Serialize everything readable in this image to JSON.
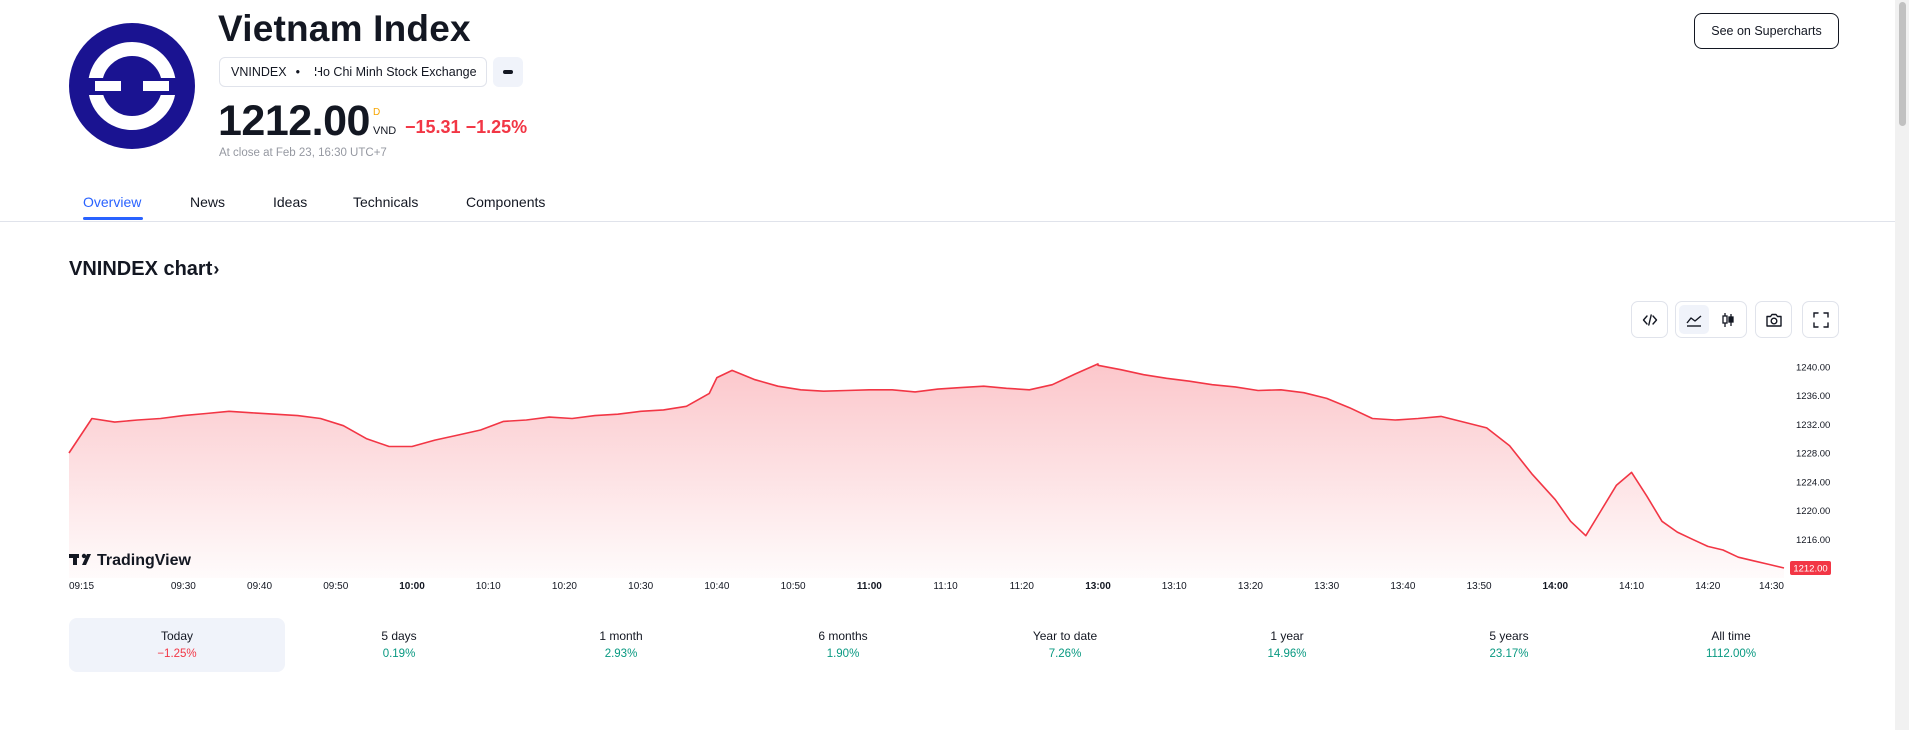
{
  "header": {
    "title": "Vietnam Index",
    "symbol": "VNINDEX",
    "exchange": "Ho Chi Minh Stock Exchange",
    "price": "1212.00",
    "price_flag": "D",
    "currency": "VND",
    "change": "−15.31",
    "change_percent": "−1.25%",
    "close_note": "At close at Feb 23, 16:30 UTC+7",
    "supercharts_button": "See on Supercharts",
    "logo_icon": "hose-logo-icon",
    "exchange_icon": "hose-exchange-icon"
  },
  "tabs": [
    {
      "label": "Overview",
      "active": true
    },
    {
      "label": "News"
    },
    {
      "label": "Ideas"
    },
    {
      "label": "Technicals"
    },
    {
      "label": "Components"
    }
  ],
  "chart_section": {
    "heading": "VNINDEX chart",
    "chevron": "›",
    "tools": [
      "embed-code-icon",
      "area-chart-icon",
      "candles-icon",
      "camera-icon",
      "fullscreen-icon"
    ],
    "watermark": "TradingView"
  },
  "colors": {
    "line": "#f23645",
    "negative": "#f23645",
    "positive": "#089981",
    "accent": "#2962ff"
  },
  "chart_data": {
    "type": "area",
    "x": [
      "09:15",
      "09:18",
      "09:21",
      "09:24",
      "09:27",
      "09:30",
      "09:33",
      "09:36",
      "09:39",
      "09:42",
      "09:45",
      "09:48",
      "09:51",
      "09:54",
      "09:57",
      "10:00",
      "10:03",
      "10:06",
      "10:09",
      "10:12",
      "10:15",
      "10:18",
      "10:21",
      "10:24",
      "10:27",
      "10:30",
      "10:33",
      "10:36",
      "10:39",
      "10:40",
      "10:42",
      "10:45",
      "10:48",
      "10:51",
      "10:54",
      "10:57",
      "11:00",
      "11:03",
      "11:06",
      "11:09",
      "11:12",
      "11:15",
      "11:18",
      "11:21",
      "11:24",
      "11:27",
      "11:30",
      "13:00",
      "13:03",
      "13:06",
      "13:09",
      "13:12",
      "13:15",
      "13:18",
      "13:21",
      "13:24",
      "13:27",
      "13:30",
      "13:33",
      "13:36",
      "13:39",
      "13:42",
      "13:45",
      "13:48",
      "13:51",
      "13:54",
      "13:57",
      "14:00",
      "14:02",
      "14:04",
      "14:06",
      "14:08",
      "14:10",
      "14:12",
      "14:14",
      "14:16",
      "14:18",
      "14:20",
      "14:22",
      "14:24",
      "14:26",
      "14:28",
      "14:30"
    ],
    "y": [
      1228.0,
      1232.8,
      1232.3,
      1232.6,
      1232.8,
      1233.2,
      1233.5,
      1233.8,
      1233.6,
      1233.4,
      1233.2,
      1232.8,
      1231.8,
      1230.0,
      1228.9,
      1228.9,
      1229.8,
      1230.5,
      1231.2,
      1232.4,
      1232.6,
      1233.0,
      1232.8,
      1233.2,
      1233.4,
      1233.8,
      1234.0,
      1234.5,
      1236.3,
      1238.5,
      1239.5,
      1238.2,
      1237.3,
      1236.8,
      1236.6,
      1236.7,
      1236.8,
      1236.8,
      1236.5,
      1236.9,
      1237.1,
      1237.3,
      1237.0,
      1236.8,
      1237.5,
      1239.0,
      1240.4,
      1240.2,
      1239.6,
      1238.9,
      1238.4,
      1238.0,
      1237.5,
      1237.2,
      1236.7,
      1236.8,
      1236.4,
      1235.6,
      1234.3,
      1232.8,
      1232.6,
      1232.8,
      1233.1,
      1232.3,
      1231.5,
      1229.0,
      1225.0,
      1221.5,
      1218.5,
      1216.5,
      1220.0,
      1223.5,
      1225.3,
      1222.0,
      1218.5,
      1217.0,
      1216.0,
      1215.0,
      1214.5,
      1213.5,
      1213.0,
      1212.5,
      1212.0
    ],
    "y_ticks": [
      "1216.00",
      "1220.00",
      "1224.00",
      "1228.00",
      "1232.00",
      "1236.00",
      "1240.00"
    ],
    "y_tick_values": [
      1216,
      1220,
      1224,
      1228,
      1232,
      1236,
      1240
    ],
    "x_tick_labels": [
      "09:15",
      "09:30",
      "09:40",
      "09:50",
      "10:00",
      "10:10",
      "10:20",
      "10:30",
      "10:40",
      "10:50",
      "11:00",
      "11:10",
      "11:20",
      "13:00",
      "13:10",
      "13:20",
      "13:30",
      "13:40",
      "13:50",
      "14:00",
      "14:10",
      "14:20",
      "14:30"
    ],
    "bold_x_ticks": [
      "10:00",
      "11:00",
      "13:00",
      "14:00"
    ],
    "ylim": [
      1212,
      1241.5
    ],
    "last_value_label": "1212.00",
    "grid": false
  },
  "periods": [
    {
      "label": "Today",
      "value": "−1.25%",
      "sign": "negative",
      "active": true
    },
    {
      "label": "5 days",
      "value": "0.19%",
      "sign": "positive"
    },
    {
      "label": "1 month",
      "value": "2.93%",
      "sign": "positive"
    },
    {
      "label": "6 months",
      "value": "1.90%",
      "sign": "positive"
    },
    {
      "label": "Year to date",
      "value": "7.26%",
      "sign": "positive"
    },
    {
      "label": "1 year",
      "value": "14.96%",
      "sign": "positive"
    },
    {
      "label": "5 years",
      "value": "23.17%",
      "sign": "positive"
    },
    {
      "label": "All time",
      "value": "1112.00%",
      "sign": "positive"
    }
  ]
}
